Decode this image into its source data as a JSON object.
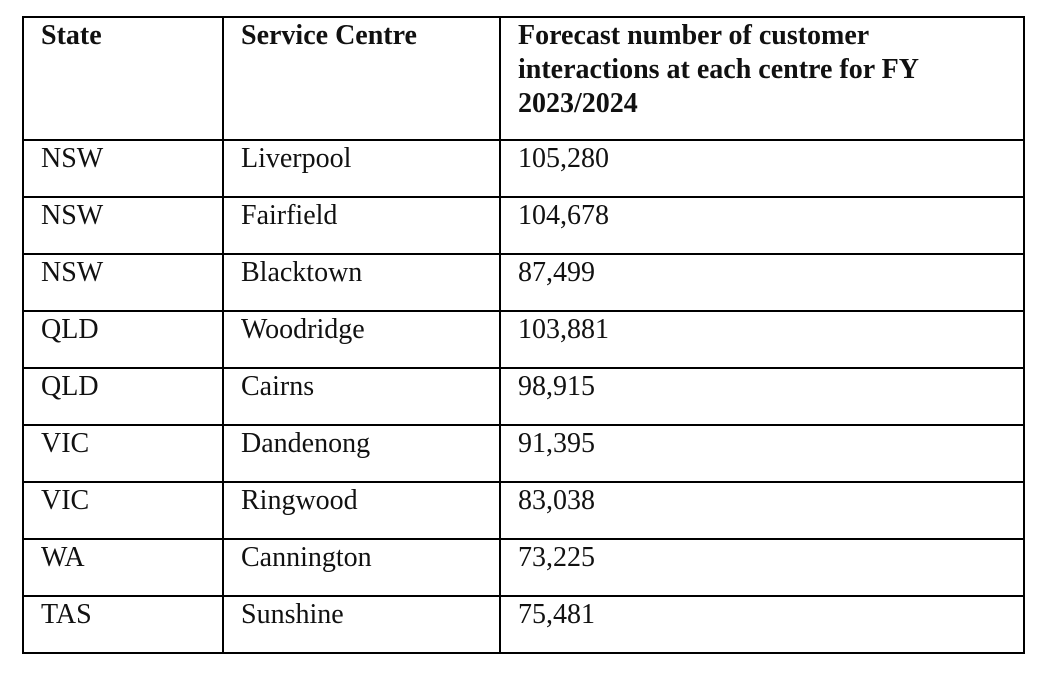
{
  "table": {
    "header": [
      "State",
      "Service Centre",
      "Forecast number of customer interactions at each centre for FY 2023/2024"
    ],
    "rows": [
      [
        "NSW",
        "Liverpool",
        "105,280"
      ],
      [
        "NSW",
        "Fairfield",
        "104,678"
      ],
      [
        "NSW",
        "Blacktown",
        "87,499"
      ],
      [
        "QLD",
        "Woodridge",
        "103,881"
      ],
      [
        "QLD",
        "Cairns",
        "98,915"
      ],
      [
        "VIC",
        "Dandenong",
        "91,395"
      ],
      [
        "VIC",
        "Ringwood",
        "83,038"
      ],
      [
        "WA",
        "Cannington",
        "73,225"
      ],
      [
        "TAS",
        "Sunshine",
        "75,481"
      ]
    ]
  }
}
